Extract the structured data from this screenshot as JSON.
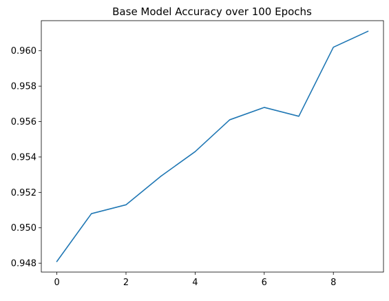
{
  "chart_data": {
    "type": "line",
    "title": "Base Model Accuracy over 100 Epochs",
    "xlabel": "",
    "ylabel": "",
    "xlim": [
      -0.45,
      9.45
    ],
    "ylim": [
      0.9475,
      0.9617
    ],
    "xticks": [
      0,
      2,
      4,
      6,
      8
    ],
    "yticks": [
      0.948,
      0.95,
      0.952,
      0.954,
      0.956,
      0.958,
      0.96
    ],
    "xtick_labels": [
      "0",
      "2",
      "4",
      "6",
      "8"
    ],
    "ytick_labels": [
      "0.948",
      "0.950",
      "0.952",
      "0.954",
      "0.956",
      "0.958",
      "0.960"
    ],
    "grid": false,
    "series": [
      {
        "color": "#1f77b4",
        "x": [
          0,
          1,
          2,
          3,
          4,
          5,
          6,
          7,
          8,
          9
        ],
        "y": [
          0.9481,
          0.9508,
          0.9513,
          0.9529,
          0.9543,
          0.9561,
          0.9568,
          0.9563,
          0.9602,
          0.9611
        ]
      }
    ]
  }
}
